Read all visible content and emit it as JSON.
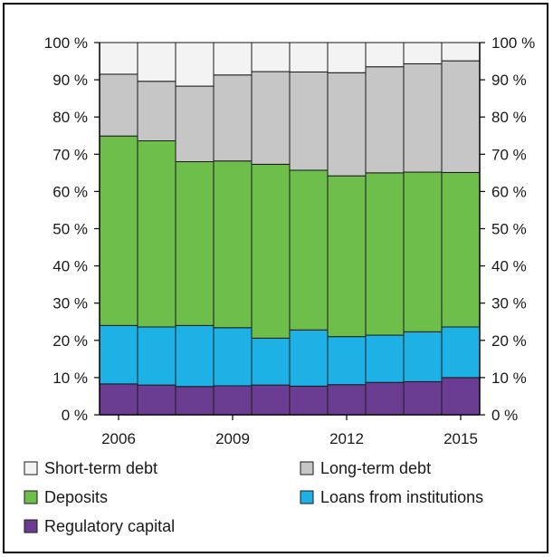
{
  "chart_data": {
    "type": "bar",
    "stacked": true,
    "percent": true,
    "categories": [
      "2006",
      "2007",
      "2008",
      "2009",
      "2010",
      "2011",
      "2012",
      "2013",
      "2014",
      "2015"
    ],
    "x_tick_labels": [
      "2006",
      "",
      "",
      "2009",
      "",
      "",
      "2012",
      "",
      "",
      "2015"
    ],
    "y_tick_labels": [
      "0 %",
      "10 %",
      "20 %",
      "30 %",
      "40 %",
      "50 %",
      "60 %",
      "70 %",
      "80 %",
      "90 %",
      "100 %"
    ],
    "ylim": [
      0,
      100
    ],
    "y_axes": [
      "left",
      "right"
    ],
    "grid": false,
    "legend_position": "bottom",
    "series": [
      {
        "name": "Regulatory capital",
        "color": "#6b3d92",
        "values": [
          8.3,
          8.0,
          7.6,
          7.8,
          8.0,
          7.7,
          8.1,
          8.7,
          8.9,
          10.0
        ]
      },
      {
        "name": "Loans from institutions",
        "color": "#1eb1e6",
        "values": [
          15.7,
          15.6,
          16.4,
          15.6,
          12.6,
          15.1,
          12.9,
          12.7,
          13.4,
          13.6
        ]
      },
      {
        "name": "Deposits",
        "color": "#6dbe4b",
        "values": [
          50.9,
          50.0,
          44.0,
          44.8,
          46.7,
          42.9,
          43.2,
          43.6,
          42.9,
          41.5
        ]
      },
      {
        "name": "Long-term debt",
        "color": "#c6c6c6",
        "values": [
          16.6,
          16.0,
          20.3,
          23.1,
          24.9,
          26.4,
          27.7,
          28.5,
          29.1,
          30.0
        ]
      },
      {
        "name": "Short-term debt",
        "color": "#f3f3f3",
        "values": [
          8.5,
          10.4,
          11.7,
          8.7,
          7.8,
          7.9,
          8.1,
          6.5,
          5.7,
          4.9
        ]
      }
    ],
    "legend": [
      {
        "name": "Short-term debt",
        "color": "#f3f3f3"
      },
      {
        "name": "Long-term debt",
        "color": "#c6c6c6"
      },
      {
        "name": "Deposits",
        "color": "#6dbe4b"
      },
      {
        "name": "Loans from institutions",
        "color": "#1eb1e6"
      },
      {
        "name": "Regulatory capital",
        "color": "#6b3d92"
      }
    ]
  }
}
